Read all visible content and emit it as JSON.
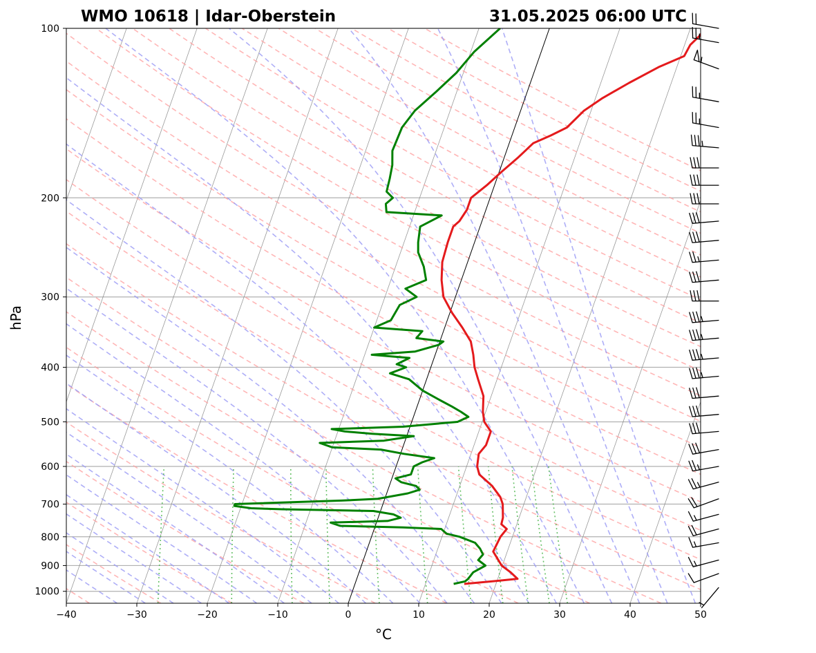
{
  "chart_data": {
    "type": "line",
    "chart_kind": "skew-T log-p",
    "title_left": "WMO 10618 | Idar-Oberstein",
    "title_right": "31.05.2025 06:00 UTC",
    "xlabel": "°C",
    "ylabel": "hPa",
    "xlim": [
      -40,
      50
    ],
    "ylim": [
      1050,
      100
    ],
    "y_scale": "log",
    "x_ticks": [
      -40,
      -30,
      -20,
      -10,
      0,
      10,
      20,
      30,
      40,
      50
    ],
    "x_tick_labels": [
      "−40",
      "−30",
      "−20",
      "−10",
      "0",
      "10",
      "20",
      "30",
      "40",
      "50"
    ],
    "y_ticks": [
      1000,
      900,
      800,
      700,
      600,
      500,
      400,
      300,
      200,
      100
    ],
    "y_tick_labels": [
      "1000",
      "900",
      "800",
      "700",
      "600",
      "500",
      "400",
      "300",
      "200",
      "100"
    ],
    "grid": true,
    "background_lines": {
      "isotherms": {
        "color": "#808080",
        "style": "solid"
      },
      "dry_adiabats": {
        "color": "#ff9e9e",
        "style": "dashed"
      },
      "moist_adiabats": {
        "color": "#9a9af5",
        "style": "dashed"
      },
      "mixing_ratio": {
        "color": "#4bb54b",
        "style": "dotted"
      },
      "zero_isotherm": {
        "color": "#000000",
        "style": "solid"
      }
    },
    "series": [
      {
        "color": "#e41a1c",
        "role": "temperature",
        "points": [
          {
            "p": 970,
            "t": 15.5
          },
          {
            "p": 958,
            "t": 20
          },
          {
            "p": 950,
            "t": 22.8
          },
          {
            "p": 925,
            "t": 21.5
          },
          {
            "p": 900,
            "t": 19.9
          },
          {
            "p": 850,
            "t": 18.0
          },
          {
            "p": 800,
            "t": 18.3
          },
          {
            "p": 775,
            "t": 18.8
          },
          {
            "p": 760,
            "t": 17.8
          },
          {
            "p": 740,
            "t": 17.7
          },
          {
            "p": 700,
            "t": 17.0
          },
          {
            "p": 680,
            "t": 16.3
          },
          {
            "p": 650,
            "t": 14.6
          },
          {
            "p": 620,
            "t": 12.2
          },
          {
            "p": 600,
            "t": 11.5
          },
          {
            "p": 570,
            "t": 11.1
          },
          {
            "p": 550,
            "t": 11.7
          },
          {
            "p": 520,
            "t": 11.7
          },
          {
            "p": 500,
            "t": 10.3
          },
          {
            "p": 480,
            "t": 9.6
          },
          {
            "p": 450,
            "t": 8.9
          },
          {
            "p": 420,
            "t": 7.3
          },
          {
            "p": 400,
            "t": 6.2
          },
          {
            "p": 380,
            "t": 5.4
          },
          {
            "p": 360,
            "t": 4.4
          },
          {
            "p": 340,
            "t": 2.5
          },
          {
            "p": 320,
            "t": 0.3
          },
          {
            "p": 300,
            "t": -1.7
          },
          {
            "p": 280,
            "t": -2.8
          },
          {
            "p": 260,
            "t": -3.6
          },
          {
            "p": 240,
            "t": -3.8
          },
          {
            "p": 225,
            "t": -3.8
          },
          {
            "p": 220,
            "t": -3.2
          },
          {
            "p": 210,
            "t": -2.7
          },
          {
            "p": 200,
            "t": -2.7
          },
          {
            "p": 190,
            "t": -1.1
          },
          {
            "p": 180,
            "t": 0.3
          },
          {
            "p": 170,
            "t": 1.9
          },
          {
            "p": 160,
            "t": 3.4
          },
          {
            "p": 155,
            "t": 5.5
          },
          {
            "p": 150,
            "t": 7.4
          },
          {
            "p": 140,
            "t": 9.0
          },
          {
            "p": 133,
            "t": 11.0
          },
          {
            "p": 125,
            "t": 14.0
          },
          {
            "p": 117,
            "t": 17.5
          },
          {
            "p": 112,
            "t": 20.5
          },
          {
            "p": 107,
            "t": 20.8
          },
          {
            "p": 103,
            "t": 21.7
          },
          {
            "p": 100,
            "t": 22
          }
        ]
      },
      {
        "color": "#008000",
        "role": "dewpoint",
        "points": [
          {
            "p": 970,
            "t": 14.0
          },
          {
            "p": 960,
            "t": 15.5
          },
          {
            "p": 950,
            "t": 15.8
          },
          {
            "p": 925,
            "t": 16.2
          },
          {
            "p": 900,
            "t": 17.6
          },
          {
            "p": 880,
            "t": 16.3
          },
          {
            "p": 860,
            "t": 16.7
          },
          {
            "p": 840,
            "t": 16.0
          },
          {
            "p": 820,
            "t": 15.0
          },
          {
            "p": 800,
            "t": 12.5
          },
          {
            "p": 790,
            "t": 10.5
          },
          {
            "p": 775,
            "t": 9.5
          },
          {
            "p": 770,
            "t": 4.0
          },
          {
            "p": 765,
            "t": -5.0
          },
          {
            "p": 755,
            "t": -6.5
          },
          {
            "p": 750,
            "t": 1.5
          },
          {
            "p": 740,
            "t": 3.2
          },
          {
            "p": 730,
            "t": 2.0
          },
          {
            "p": 720,
            "t": -1.0
          },
          {
            "p": 715,
            "t": -14.0
          },
          {
            "p": 712,
            "t": -18.5
          },
          {
            "p": 705,
            "t": -21.0
          },
          {
            "p": 700,
            "t": -21.0
          },
          {
            "p": 690,
            "t": -6.0
          },
          {
            "p": 685,
            "t": -1.0
          },
          {
            "p": 670,
            "t": 3.0
          },
          {
            "p": 660,
            "t": 4.5
          },
          {
            "p": 650,
            "t": 3.8
          },
          {
            "p": 640,
            "t": 1.5
          },
          {
            "p": 630,
            "t": 0.5
          },
          {
            "p": 620,
            "t": 2.5
          },
          {
            "p": 600,
            "t": 2.5
          },
          {
            "p": 590,
            "t": 3.5
          },
          {
            "p": 580,
            "t": 5.0
          },
          {
            "p": 570,
            "t": 0.5
          },
          {
            "p": 560,
            "t": -3.0
          },
          {
            "p": 555,
            "t": -10.0
          },
          {
            "p": 545,
            "t": -12.0
          },
          {
            "p": 540,
            "t": -3.0
          },
          {
            "p": 530,
            "t": 1.0
          },
          {
            "p": 525,
            "t": -5.0
          },
          {
            "p": 520,
            "t": -9.0
          },
          {
            "p": 515,
            "t": -11.0
          },
          {
            "p": 510,
            "t": -1.0
          },
          {
            "p": 500,
            "t": 6.5
          },
          {
            "p": 490,
            "t": 7.8
          },
          {
            "p": 480,
            "t": 6.5
          },
          {
            "p": 470,
            "t": 5.0
          },
          {
            "p": 455,
            "t": 2.5
          },
          {
            "p": 440,
            "t": 0.0
          },
          {
            "p": 420,
            "t": -2.5
          },
          {
            "p": 410,
            "t": -5.5
          },
          {
            "p": 400,
            "t": -3.5
          },
          {
            "p": 395,
            "t": -5.0
          },
          {
            "p": 385,
            "t": -3.5
          },
          {
            "p": 380,
            "t": -9.0
          },
          {
            "p": 375,
            "t": -3.0
          },
          {
            "p": 365,
            "t": 0.0
          },
          {
            "p": 360,
            "t": 0.5
          },
          {
            "p": 355,
            "t": -3.5
          },
          {
            "p": 345,
            "t": -3.0
          },
          {
            "p": 340,
            "t": -10.0
          },
          {
            "p": 330,
            "t": -8.0
          },
          {
            "p": 310,
            "t": -7.5
          },
          {
            "p": 300,
            "t": -5.5
          },
          {
            "p": 290,
            "t": -7.5
          },
          {
            "p": 280,
            "t": -5.0
          },
          {
            "p": 265,
            "t": -6.0
          },
          {
            "p": 250,
            "t": -7.5
          },
          {
            "p": 240,
            "t": -8.0
          },
          {
            "p": 225,
            "t": -8.5
          },
          {
            "p": 215,
            "t": -6.0
          },
          {
            "p": 212,
            "t": -14.0
          },
          {
            "p": 205,
            "t": -14.5
          },
          {
            "p": 200,
            "t": -13.8
          },
          {
            "p": 195,
            "t": -15.0
          },
          {
            "p": 185,
            "t": -15.2
          },
          {
            "p": 175,
            "t": -15.5
          },
          {
            "p": 165,
            "t": -16.2
          },
          {
            "p": 150,
            "t": -16.0
          },
          {
            "p": 140,
            "t": -15.0
          },
          {
            "p": 130,
            "t": -13.0
          },
          {
            "p": 120,
            "t": -11.0
          },
          {
            "p": 110,
            "t": -9.5
          },
          {
            "p": 100,
            "t": -7.0
          }
        ]
      }
    ],
    "wind_barbs": [
      {
        "p": 985,
        "dir": 220,
        "kt": 5
      },
      {
        "p": 930,
        "dir": 250,
        "kt": 10
      },
      {
        "p": 880,
        "dir": 255,
        "kt": 15
      },
      {
        "p": 820,
        "dir": 260,
        "kt": 15
      },
      {
        "p": 775,
        "dir": 255,
        "kt": 20
      },
      {
        "p": 730,
        "dir": 255,
        "kt": 15
      },
      {
        "p": 685,
        "dir": 250,
        "kt": 20
      },
      {
        "p": 640,
        "dir": 255,
        "kt": 25
      },
      {
        "p": 600,
        "dir": 260,
        "kt": 25
      },
      {
        "p": 560,
        "dir": 260,
        "kt": 30
      },
      {
        "p": 520,
        "dir": 265,
        "kt": 30
      },
      {
        "p": 485,
        "dir": 265,
        "kt": 30
      },
      {
        "p": 450,
        "dir": 265,
        "kt": 30
      },
      {
        "p": 415,
        "dir": 265,
        "kt": 35
      },
      {
        "p": 385,
        "dir": 265,
        "kt": 35
      },
      {
        "p": 355,
        "dir": 265,
        "kt": 35
      },
      {
        "p": 330,
        "dir": 265,
        "kt": 35
      },
      {
        "p": 305,
        "dir": 270,
        "kt": 30
      },
      {
        "p": 280,
        "dir": 265,
        "kt": 30
      },
      {
        "p": 258,
        "dir": 265,
        "kt": 25
      },
      {
        "p": 238,
        "dir": 265,
        "kt": 30
      },
      {
        "p": 220,
        "dir": 265,
        "kt": 30
      },
      {
        "p": 205,
        "dir": 270,
        "kt": 30
      },
      {
        "p": 190,
        "dir": 270,
        "kt": 30
      },
      {
        "p": 177,
        "dir": 270,
        "kt": 30
      },
      {
        "p": 163,
        "dir": 275,
        "kt": 35
      },
      {
        "p": 150,
        "dir": 280,
        "kt": 25
      },
      {
        "p": 135,
        "dir": 280,
        "kt": 25
      },
      {
        "p": 118,
        "dir": 290,
        "kt": 55
      },
      {
        "p": 106,
        "dir": 280,
        "kt": 25
      },
      {
        "p": 100,
        "dir": 280,
        "kt": 20
      }
    ]
  }
}
